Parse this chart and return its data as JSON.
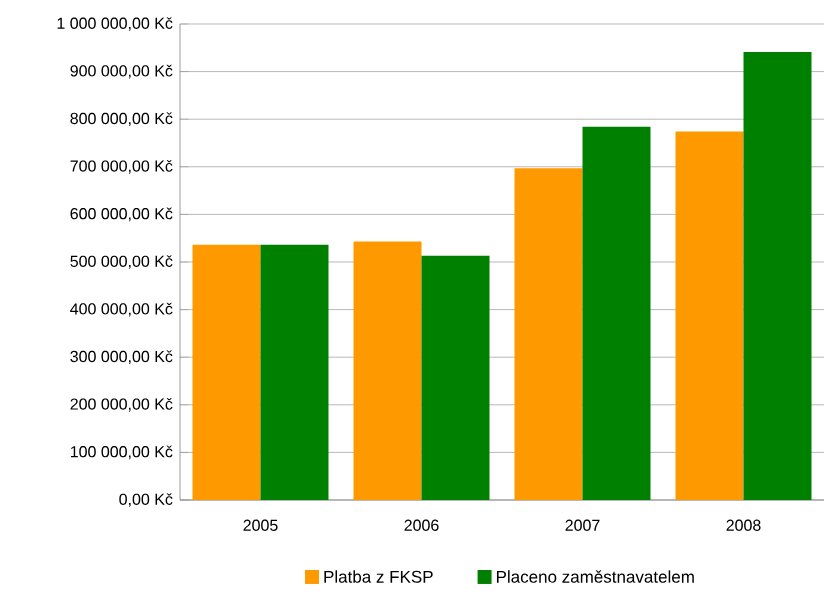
{
  "chart_data": {
    "type": "bar",
    "categories": [
      "2005",
      "2006",
      "2007",
      "2008"
    ],
    "series": [
      {
        "name": "Platba z FKSP",
        "color": "#ff9900",
        "values": [
          536000,
          543000,
          697000,
          774000
        ]
      },
      {
        "name": "Placeno zaměstnavatelem",
        "color": "#008000",
        "values": [
          536000,
          513000,
          784000,
          941000
        ]
      }
    ],
    "ylim": [
      0,
      1000000
    ],
    "yticks": [
      {
        "value": 0,
        "label": "0,00 Kč"
      },
      {
        "value": 100000,
        "label": "100 000,00 Kč"
      },
      {
        "value": 200000,
        "label": "200 000,00 Kč"
      },
      {
        "value": 300000,
        "label": "300 000,00 Kč"
      },
      {
        "value": 400000,
        "label": "400 000,00 Kč"
      },
      {
        "value": 500000,
        "label": "500 000,00 Kč"
      },
      {
        "value": 600000,
        "label": "600 000,00 Kč"
      },
      {
        "value": 700000,
        "label": "700 000,00 Kč"
      },
      {
        "value": 800000,
        "label": "800 000,00 Kč"
      },
      {
        "value": 900000,
        "label": "900 000,00 Kč"
      },
      {
        "value": 1000000,
        "label": "1 000 000,00 Kč"
      }
    ],
    "grid": "y",
    "legend": "bottom"
  }
}
